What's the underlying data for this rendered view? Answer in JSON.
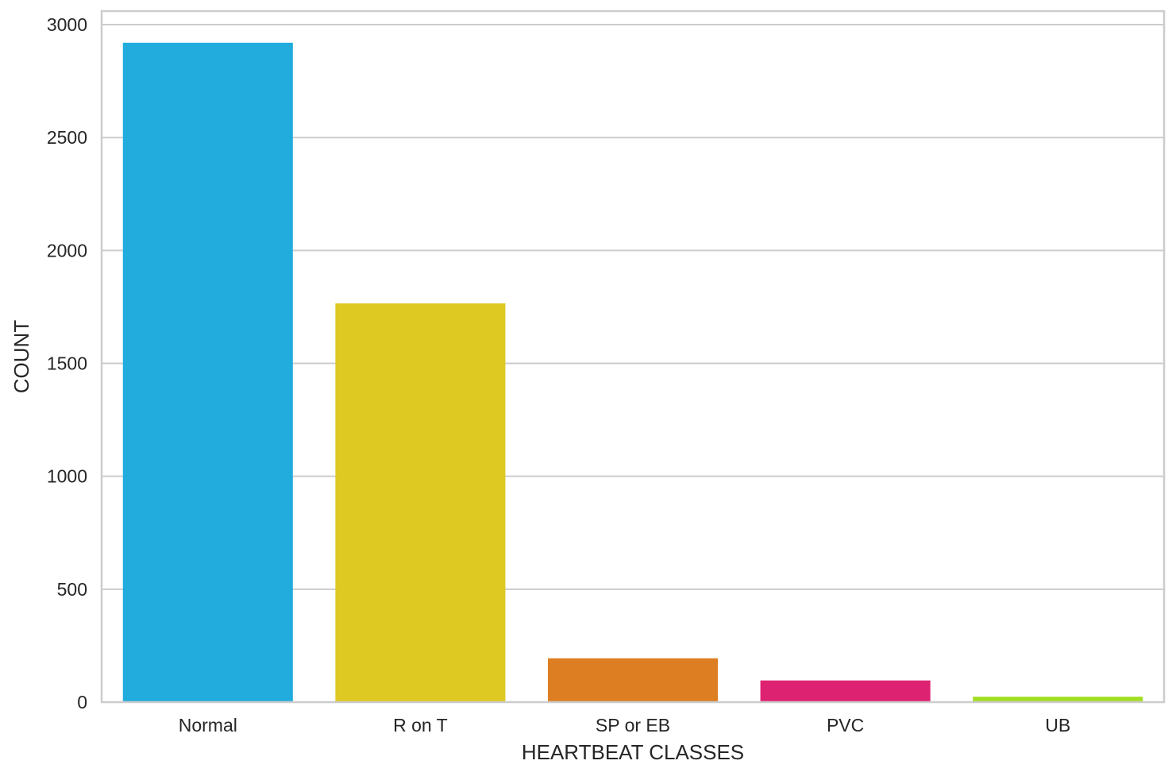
{
  "chart_data": {
    "type": "bar",
    "title": "",
    "xlabel": "HEARTBEAT CLASSES",
    "ylabel": "COUNT",
    "categories": [
      "Normal",
      "R on T",
      "SP or EB",
      "PVC",
      "UB"
    ],
    "values": [
      2920,
      1766,
      194,
      96,
      24
    ],
    "colors": [
      "#22ACDE",
      "#DEC822",
      "#DE7E22",
      "#DE2272",
      "#A1DE22"
    ],
    "ylim": [
      0,
      3060
    ],
    "yticks": [
      0,
      500,
      1000,
      1500,
      2000,
      2500,
      3000
    ],
    "grid": true,
    "legend": false
  }
}
